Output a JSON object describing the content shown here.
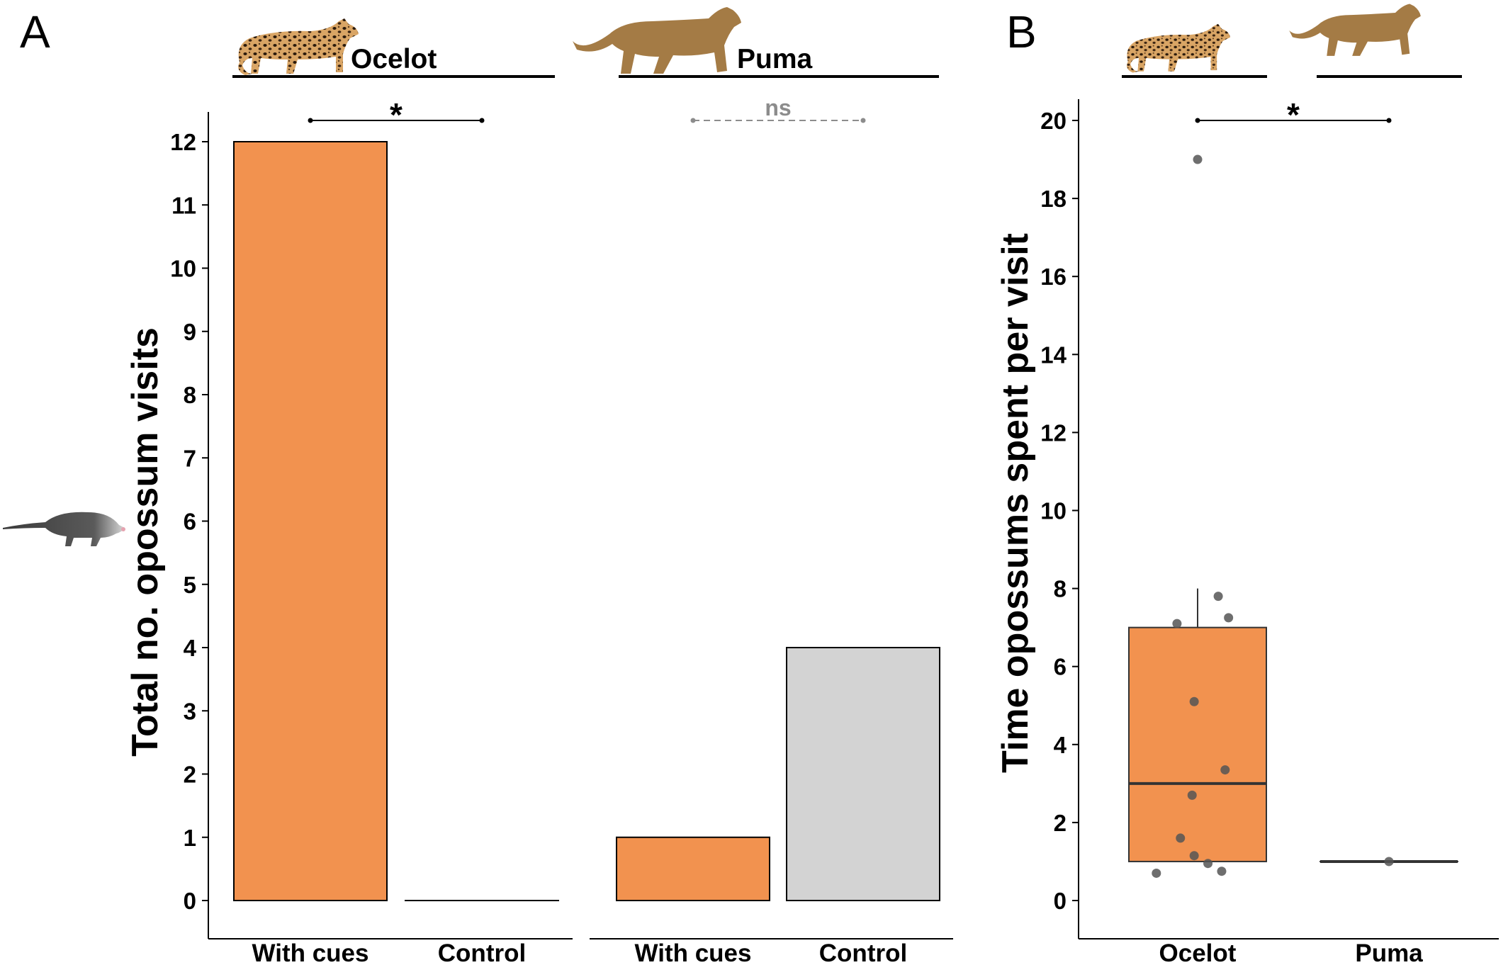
{
  "chart_data": [
    {
      "panel": "A",
      "type": "bar",
      "ylabel": "Total no. opossum visits",
      "ylim": [
        0,
        12
      ],
      "yticks": [
        0,
        1,
        2,
        3,
        4,
        5,
        6,
        7,
        8,
        9,
        10,
        11,
        12
      ],
      "groups": [
        {
          "name": "Ocelot",
          "categories": [
            "With cues",
            "Control"
          ],
          "values": [
            12,
            0
          ],
          "colors": [
            "#F2924F",
            "#D3D3D3"
          ],
          "significance": "*"
        },
        {
          "name": "Puma",
          "categories": [
            "With cues",
            "Control"
          ],
          "values": [
            1,
            4
          ],
          "colors": [
            "#F2924F",
            "#D3D3D3"
          ],
          "significance": "ns"
        }
      ]
    },
    {
      "panel": "B",
      "type": "box",
      "ylabel": "Time opossums spent per visit",
      "ylim": [
        0,
        20
      ],
      "yticks": [
        0,
        2,
        4,
        6,
        8,
        10,
        12,
        14,
        16,
        18,
        20
      ],
      "categories": [
        "Ocelot",
        "Puma"
      ],
      "significance": "*",
      "boxes": [
        {
          "name": "Ocelot",
          "q1": 1,
          "median": 3,
          "q3": 7,
          "whisker_low": 1,
          "whisker_high": 8,
          "color": "#F2924F",
          "points": [
            19,
            7.8,
            7.25,
            7.1,
            5.1,
            3.35,
            2.7,
            1.6,
            1.15,
            0.95,
            0.75,
            0.7
          ]
        },
        {
          "name": "Puma",
          "q1": 1,
          "median": 1,
          "q3": 1,
          "whisker_low": 1,
          "whisker_high": 1,
          "color": "#F2924F",
          "points": [
            1
          ]
        }
      ]
    }
  ]
}
